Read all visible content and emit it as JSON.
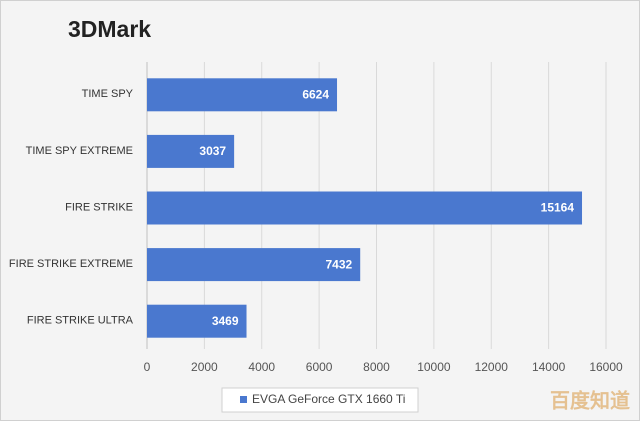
{
  "chart_data": {
    "type": "bar",
    "orientation": "horizontal",
    "title": "3DMark",
    "categories": [
      "TIME SPY",
      "TIME SPY EXTREME",
      "FIRE STRIKE",
      "FIRE STRIKE EXTREME",
      "FIRE STRIKE ULTRA"
    ],
    "series": [
      {
        "name": "EVGA GeForce GTX 1660 Ti",
        "color": "#4a78cf",
        "values": [
          6624,
          3037,
          15164,
          7432,
          3469
        ]
      }
    ],
    "xlim": [
      0,
      16000
    ],
    "xticks": [
      0,
      2000,
      4000,
      6000,
      8000,
      10000,
      12000,
      14000,
      16000
    ],
    "grid": true,
    "legend": "bottom"
  },
  "watermark": "百度知道"
}
